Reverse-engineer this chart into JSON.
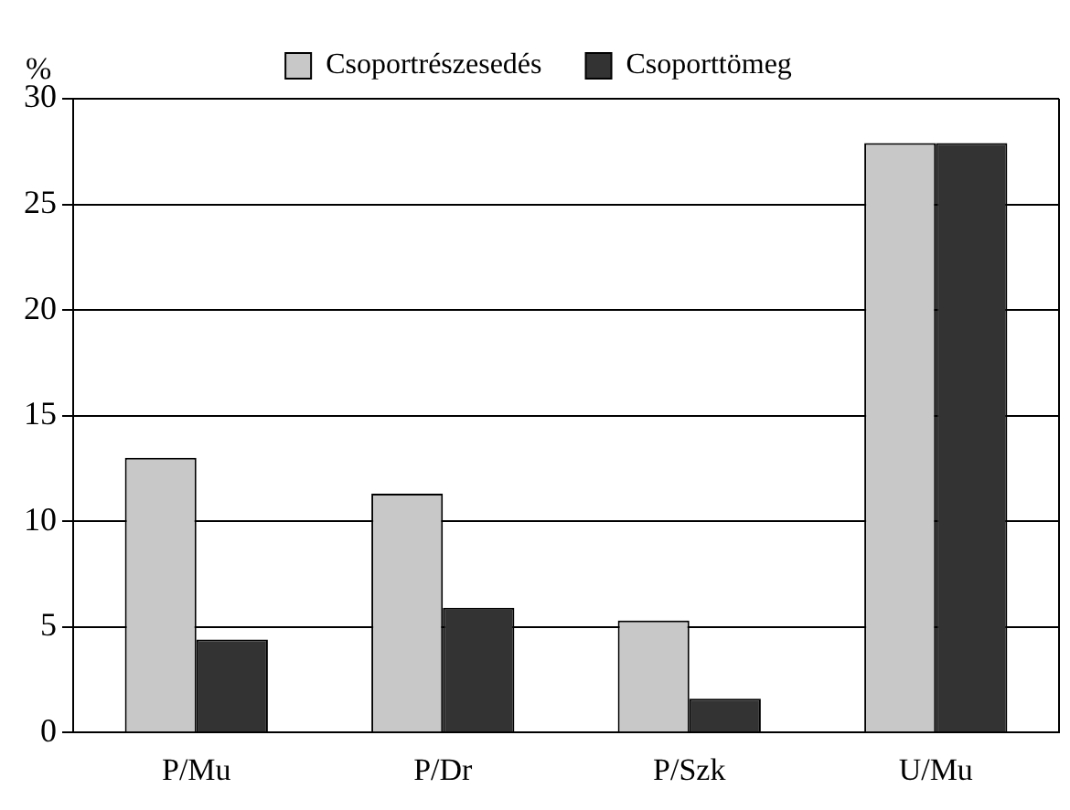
{
  "chart_data": {
    "type": "bar",
    "ylabel": "%",
    "categories": [
      "P/Mu",
      "P/Dr",
      "P/Szk",
      "U/Mu"
    ],
    "series": [
      {
        "name": "Csoportrészesedés",
        "color": "#c8c8c8",
        "values": [
          13,
          11.3,
          5.3,
          27.9
        ]
      },
      {
        "name": "Csoporttömeg",
        "color": "#333333",
        "values": [
          4.4,
          5.9,
          1.6,
          27.9
        ]
      }
    ],
    "ylim": [
      0,
      30
    ],
    "yticks": [
      0,
      5,
      10,
      15,
      20,
      25,
      30
    ],
    "grid": "y",
    "legend": "top"
  }
}
